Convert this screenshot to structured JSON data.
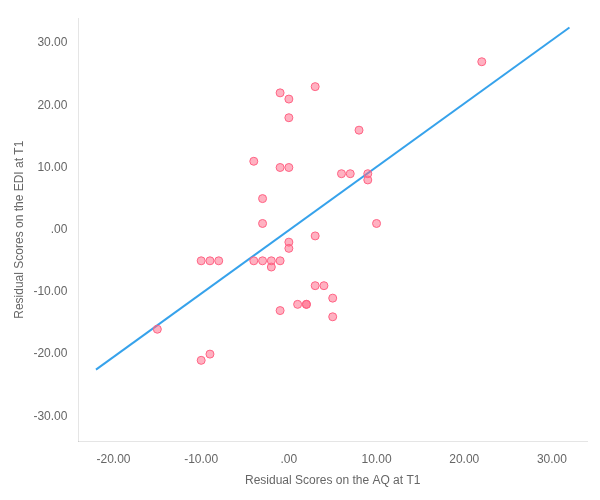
{
  "chart_data": {
    "type": "scatter",
    "xlabel": "Residual Scores on the AQ at T1",
    "ylabel": "Residual Scores on the EDI at T1",
    "series": [
      {
        "type": "line",
        "x": [
          -22,
          32
        ],
        "values": [
          -22.5,
          32.5
        ]
      },
      {
        "type": "scatter",
        "x": [
          -15,
          -10,
          -9,
          -8,
          -10,
          -9,
          -4,
          -4,
          -3,
          -3,
          -3,
          -2,
          -2,
          -1,
          -1,
          -1,
          0,
          0,
          -1,
          0,
          0,
          0,
          1,
          2,
          2,
          3,
          3,
          3,
          4,
          5,
          5,
          6,
          7,
          8,
          9,
          9,
          10,
          22
        ],
        "values": [
          -16,
          -5,
          -5,
          -5,
          -21,
          -20,
          11,
          -5,
          5,
          1,
          -5,
          -5,
          -6,
          -5,
          -13,
          22,
          21,
          18,
          10,
          10,
          -2,
          -3,
          -12,
          -12,
          -12,
          23,
          -1,
          -9,
          -9,
          -11,
          -14,
          9,
          9,
          16,
          9,
          8,
          1,
          27
        ]
      }
    ],
    "xlim": [
      -24,
      34
    ],
    "ylim": [
      -34,
      34
    ],
    "xticks": [
      {
        "value": -20,
        "label": "-20.00"
      },
      {
        "value": -10,
        "label": "-10.00"
      },
      {
        "value": 0,
        "label": ".00"
      },
      {
        "value": 10,
        "label": "10.00"
      },
      {
        "value": 20,
        "label": "20.00"
      },
      {
        "value": 30,
        "label": "30.00"
      }
    ],
    "yticks": [
      {
        "value": -30,
        "label": "-30.00"
      },
      {
        "value": -20,
        "label": "-20.00"
      },
      {
        "value": -10,
        "label": "-10.00"
      },
      {
        "value": 0,
        "label": ".00"
      },
      {
        "value": 10,
        "label": "10.00"
      },
      {
        "value": 20,
        "label": "20.00"
      },
      {
        "value": 30,
        "label": "30.00"
      }
    ],
    "grid": false
  }
}
